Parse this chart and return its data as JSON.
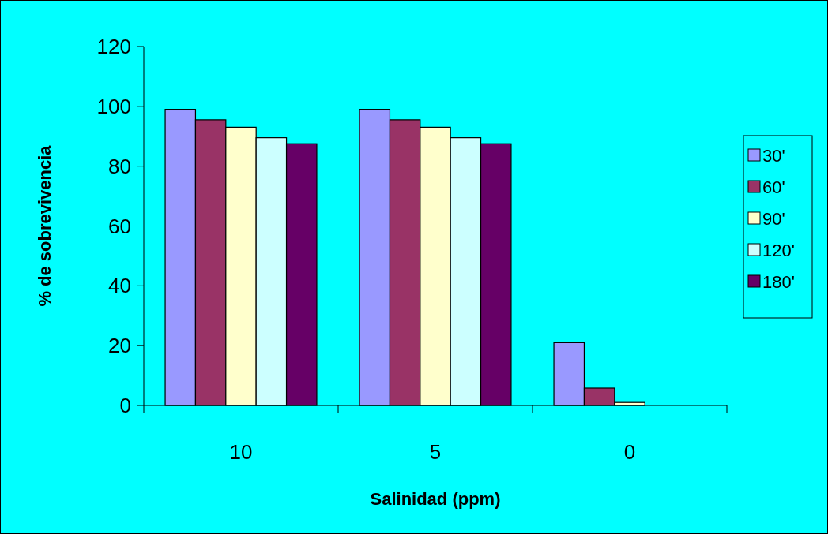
{
  "chart_data": {
    "type": "bar",
    "xlabel": "Salinidad (ppm)",
    "ylabel": "% de sobrevivencia",
    "categories": [
      "10",
      "5",
      "0"
    ],
    "series": [
      {
        "name": "30'",
        "color": "#9999ff",
        "values": [
          99,
          99,
          21
        ]
      },
      {
        "name": "60'",
        "color": "#993366",
        "values": [
          95.5,
          95.5,
          5.8
        ]
      },
      {
        "name": "90'",
        "color": "#ffffcc",
        "values": [
          93,
          93,
          1
        ]
      },
      {
        "name": "120'",
        "color": "#ccffff",
        "values": [
          89.5,
          89.5,
          0
        ]
      },
      {
        "name": "180'",
        "color": "#660066",
        "values": [
          87.5,
          87.5,
          0
        ]
      }
    ],
    "ylim": [
      0,
      120
    ],
    "yticks": [
      0,
      20,
      40,
      60,
      80,
      100,
      120
    ],
    "legend": "right"
  }
}
